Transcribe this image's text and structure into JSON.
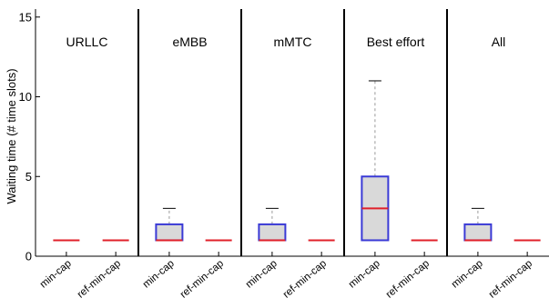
{
  "chart_data": {
    "type": "box",
    "ylabel": "Waiting time (# time slots)",
    "ylim": [
      0,
      15.5
    ],
    "yticks": [
      0,
      5,
      10,
      15
    ],
    "grid": false,
    "colors": {
      "box_edge": "#3a3ad6",
      "median": "#e0202a",
      "box_fill": "#d9d9d9",
      "whisker": "#9a9a9a",
      "divider": "#000000"
    },
    "panels": [
      {
        "title": "URLLC",
        "boxes": [
          {
            "label": "min-cap",
            "q1": 1,
            "median": 1,
            "q3": 1,
            "whisker_low": 1,
            "whisker_high": 1
          },
          {
            "label": "ref-min-cap",
            "q1": 1,
            "median": 1,
            "q3": 1,
            "whisker_low": 1,
            "whisker_high": 1
          }
        ]
      },
      {
        "title": "eMBB",
        "boxes": [
          {
            "label": "min-cap",
            "q1": 1,
            "median": 1,
            "q3": 2,
            "whisker_low": 1,
            "whisker_high": 3
          },
          {
            "label": "ref-min-cap",
            "q1": 1,
            "median": 1,
            "q3": 1,
            "whisker_low": 1,
            "whisker_high": 1
          }
        ]
      },
      {
        "title": "mMTC",
        "boxes": [
          {
            "label": "min-cap",
            "q1": 1,
            "median": 1,
            "q3": 2,
            "whisker_low": 1,
            "whisker_high": 3
          },
          {
            "label": "ref-min-cap",
            "q1": 1,
            "median": 1,
            "q3": 1,
            "whisker_low": 1,
            "whisker_high": 1
          }
        ]
      },
      {
        "title": "Best effort",
        "boxes": [
          {
            "label": "min-cap",
            "q1": 1,
            "median": 3,
            "q3": 5,
            "whisker_low": 1,
            "whisker_high": 11
          },
          {
            "label": "ref-min-cap",
            "q1": 1,
            "median": 1,
            "q3": 1,
            "whisker_low": 1,
            "whisker_high": 1
          }
        ]
      },
      {
        "title": "All",
        "boxes": [
          {
            "label": "min-cap",
            "q1": 1,
            "median": 1,
            "q3": 2,
            "whisker_low": 1,
            "whisker_high": 3
          },
          {
            "label": "ref-min-cap",
            "q1": 1,
            "median": 1,
            "q3": 1,
            "whisker_low": 1,
            "whisker_high": 1
          }
        ]
      }
    ]
  }
}
